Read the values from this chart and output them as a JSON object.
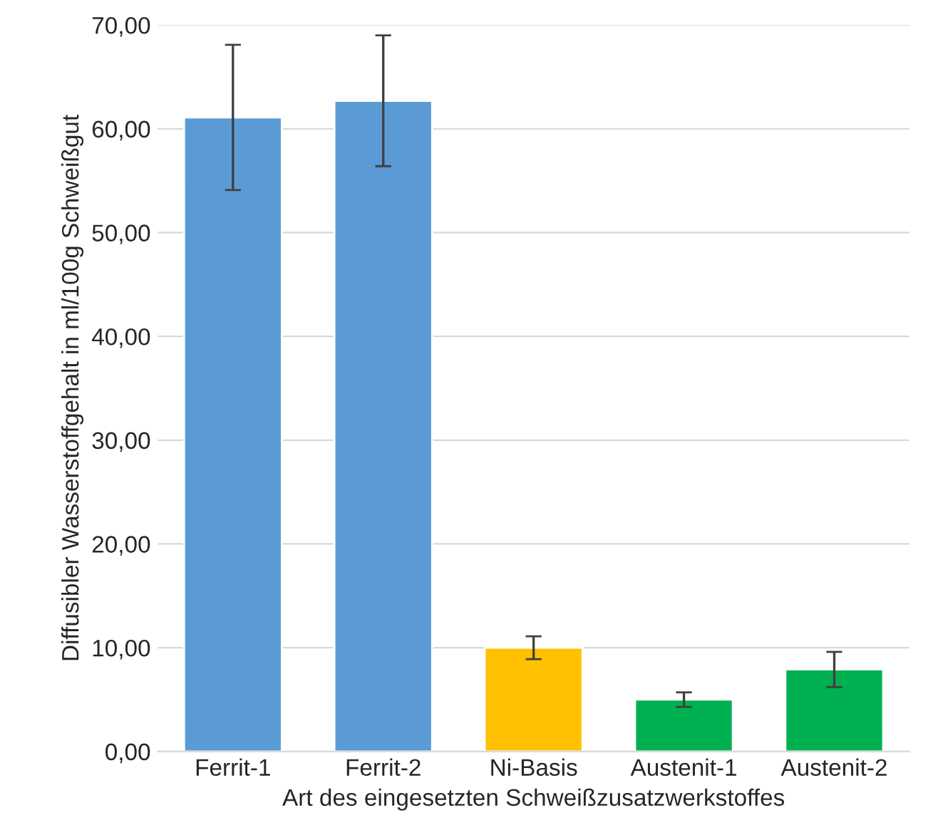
{
  "chart_data": {
    "type": "bar",
    "xlabel": "Art des eingesetzten Schweißzusatzwerkstoffes",
    "ylabel": "Diffusibler Wasserstoffgehalt in ml/100g Schweißgut",
    "categories": [
      "Ferrit-1",
      "Ferrit-2",
      "Ni-Basis",
      "Austenit-1",
      "Austenit-2"
    ],
    "values": [
      61.1,
      62.7,
      10.0,
      5.0,
      7.9
    ],
    "errors": [
      7.0,
      6.3,
      1.1,
      0.7,
      1.7
    ],
    "colors": [
      "#5b9bd5",
      "#5b9bd5",
      "#ffc000",
      "#00b050",
      "#00b050"
    ],
    "ylim": [
      0,
      70
    ],
    "yticks": [
      {
        "value": 0,
        "label": "0,00"
      },
      {
        "value": 10,
        "label": "10,00"
      },
      {
        "value": 20,
        "label": "20,00"
      },
      {
        "value": 30,
        "label": "30,00"
      },
      {
        "value": 40,
        "label": "40,00"
      },
      {
        "value": 50,
        "label": "50,00"
      },
      {
        "value": 60,
        "label": "60,00"
      },
      {
        "value": 70,
        "label": "70,00"
      }
    ],
    "grid": "y",
    "legend": false
  }
}
